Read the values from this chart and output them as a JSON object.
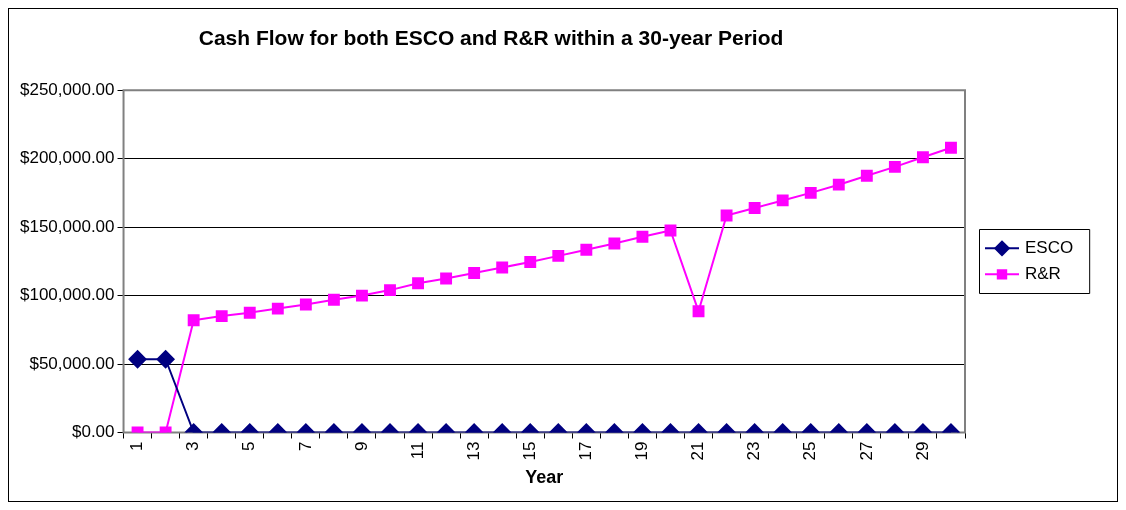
{
  "chart_data": {
    "type": "line",
    "title": "Cash Flow for both ESCO and R&R within a 30-year Period",
    "xlabel": "Year",
    "categories": [
      "1",
      null,
      "3",
      null,
      "5",
      null,
      "7",
      null,
      "9",
      null,
      "11",
      null,
      "13",
      null,
      "15",
      null,
      "17",
      null,
      "19",
      null,
      "21",
      null,
      "23",
      null,
      "25",
      null,
      "27",
      null,
      "29",
      null
    ],
    "series": [
      {
        "name": "ESCO",
        "color": "#000080",
        "marker": "diamond",
        "values": [
          53500,
          53500,
          0,
          0,
          0,
          0,
          0,
          0,
          0,
          0,
          0,
          0,
          0,
          0,
          0,
          0,
          0,
          0,
          0,
          0,
          0,
          0,
          0,
          0,
          0,
          0,
          0,
          0,
          0,
          0
        ]
      },
      {
        "name": "R&R",
        "color": "#ff00ff",
        "marker": "square",
        "values": [
          0,
          0,
          82000,
          85000,
          87500,
          90500,
          93500,
          97000,
          100000,
          104000,
          109000,
          112500,
          116500,
          120500,
          124500,
          129000,
          133500,
          138000,
          143000,
          147500,
          88500,
          158500,
          164000,
          169500,
          175000,
          181000,
          187500,
          194000,
          201000,
          208000
        ]
      }
    ],
    "ylim": [
      0,
      250000
    ],
    "yticks": [
      {
        "value": 0,
        "label": "$0.00"
      },
      {
        "value": 50000,
        "label": "$50,000.00"
      },
      {
        "value": 100000,
        "label": "$100,000.00"
      },
      {
        "value": 150000,
        "label": "$150,000.00"
      },
      {
        "value": 200000,
        "label": "$200,000.00"
      },
      {
        "value": 250000,
        "label": "$250,000.00"
      }
    ],
    "grid": "y",
    "legend": "right",
    "line_style": "solid"
  }
}
